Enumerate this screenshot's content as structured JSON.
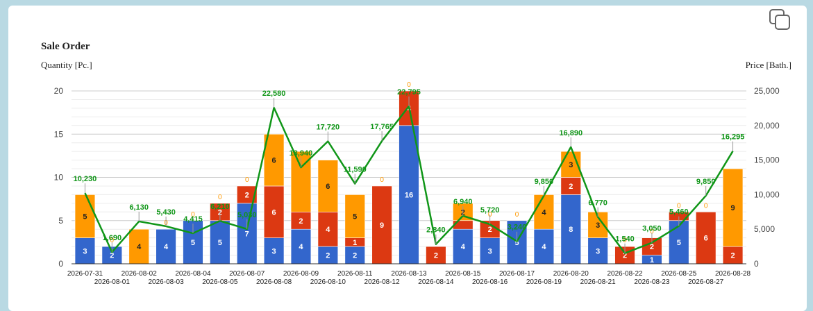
{
  "chart_data": {
    "type": "bar",
    "title": "Sale Order",
    "ylabel_left": "Quantity [Pc.]",
    "ylabel_right": "Price [Bath.]",
    "ylim_left": [
      0,
      20
    ],
    "yticks_left": [
      "0",
      "5",
      "10",
      "15",
      "20"
    ],
    "ylim_right": [
      0,
      25000
    ],
    "yticks_right": [
      "0",
      "5,000",
      "10,000",
      "15,000",
      "20,000",
      "25,000"
    ],
    "stacked": true,
    "grid": true,
    "colors": {
      "blue": "#3366cc",
      "red": "#dc3912",
      "orange": "#ff9900",
      "line": "#109618"
    },
    "categories": [
      "2026-07-31",
      "2026-08-01",
      "2026-08-02",
      "2026-08-03",
      "2026-08-04",
      "2026-08-05",
      "2026-08-07",
      "2026-08-08",
      "2026-08-09",
      "2026-08-10",
      "2026-08-11",
      "2026-08-12",
      "2026-08-13",
      "2026-08-14",
      "2026-08-15",
      "2026-08-16",
      "2026-08-17",
      "2026-08-19",
      "2026-08-20",
      "2026-08-21",
      "2026-08-22",
      "2026-08-23",
      "2026-08-25",
      "2026-08-27",
      "2026-08-28"
    ],
    "series": [
      {
        "color": "blue",
        "values": [
          3,
          2,
          0,
          4,
          5,
          5,
          7,
          3,
          4,
          2,
          2,
          0,
          16,
          0,
          4,
          3,
          5,
          4,
          8,
          3,
          0,
          1,
          5,
          0,
          0
        ]
      },
      {
        "color": "red",
        "values": [
          0,
          0,
          0,
          0,
          0,
          2,
          2,
          6,
          2,
          4,
          1,
          9,
          4,
          2,
          1,
          2,
          0,
          0,
          2,
          0,
          2,
          2,
          1,
          6,
          2
        ]
      },
      {
        "color": "orange",
        "values": [
          5,
          0,
          4,
          0,
          0,
          0,
          0,
          6,
          7,
          6,
          5,
          0,
          0,
          0,
          2,
          0,
          0,
          4,
          3,
          3,
          0,
          0,
          0,
          0,
          9
        ]
      }
    ],
    "blue_labels": [
      "3",
      "2",
      "",
      "4",
      "5",
      "5",
      "7",
      "3",
      "4",
      "2",
      "2",
      "0",
      "16",
      "",
      "4",
      "3",
      "5",
      "4",
      "8",
      "3",
      "",
      "1",
      "5",
      "0",
      ""
    ],
    "red_labels": [
      "0",
      "",
      "",
      "",
      "",
      "2",
      "2",
      "6",
      "2",
      "4",
      "1",
      "9",
      "4",
      "2",
      "",
      "2",
      "",
      "0",
      "2",
      "0",
      "2",
      "2",
      "",
      "6",
      "2"
    ],
    "orange_labels": [
      "5",
      "0",
      "4",
      "0",
      "0",
      "0",
      "0",
      "6",
      "",
      "6",
      "5",
      "0",
      "0",
      "",
      "2",
      "0",
      "0",
      "4",
      "3",
      "3",
      "0",
      "0",
      "0",
      "0",
      "9"
    ],
    "line": {
      "values": [
        10230,
        1690,
        6130,
        5430,
        4415,
        6210,
        5030,
        22580,
        13940,
        17720,
        11590,
        17765,
        22795,
        2840,
        6940,
        5720,
        3240,
        9850,
        16890,
        6770,
        1540,
        3050,
        5460,
        9850,
        16295
      ],
      "labels": [
        "10,230",
        "1,690",
        "6,130",
        "5,430",
        "4,415",
        "6,210",
        "5,030",
        "22,580",
        "13,940",
        "17,720",
        "11,590",
        "17,765",
        "22,795",
        "2,840",
        "6,940",
        "5,720",
        "3,240",
        "9,850",
        "16,890",
        "6,770",
        "1,540",
        "3,050",
        "5,460",
        "9,850",
        "16,295"
      ]
    }
  },
  "icons": {
    "copy": "copy-icon"
  }
}
